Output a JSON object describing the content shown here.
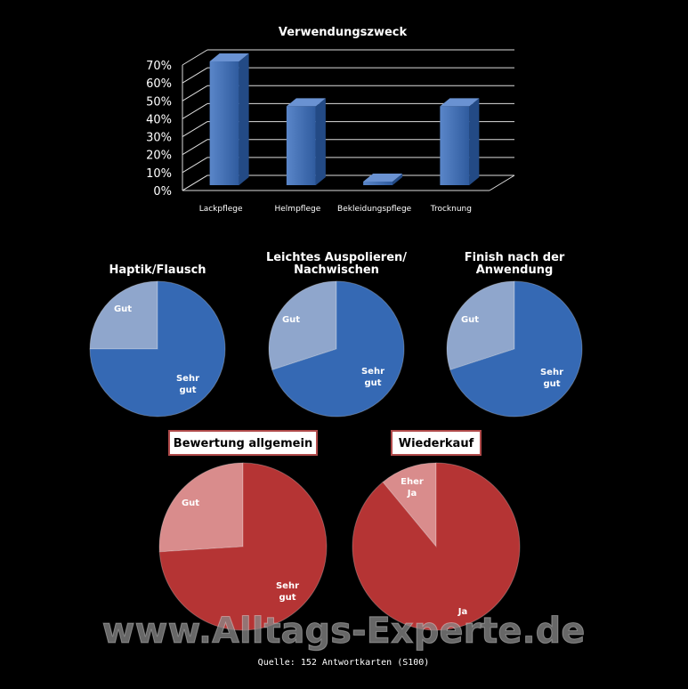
{
  "chart_data": [
    {
      "type": "bar",
      "title": "Verwendungszweck",
      "categories": [
        "Lackpflege",
        "Helmpflege",
        "Bekleidungspflege",
        "Trocknung"
      ],
      "values": [
        70,
        45,
        3,
        45
      ],
      "ylim": [
        0,
        70
      ],
      "yticks": [
        "0%",
        "10%",
        "20%",
        "30%",
        "40%",
        "50%",
        "60%",
        "70%"
      ],
      "bar_color": "#3f6fb4",
      "grid": true
    },
    {
      "type": "pie",
      "title": "Haptik/Flausch",
      "labels": [
        "Gut",
        "Sehr gut"
      ],
      "values": [
        25,
        75
      ],
      "colors": [
        "#8fa6cc",
        "#3569b4"
      ]
    },
    {
      "type": "pie",
      "title": "Leichtes Auspolieren/ Nachwischen",
      "labels": [
        "Gut",
        "Sehr gut"
      ],
      "values": [
        30,
        70
      ],
      "colors": [
        "#8fa6cc",
        "#3569b4"
      ]
    },
    {
      "type": "pie",
      "title": "Finish nach der Anwendung",
      "labels": [
        "Gut",
        "Sehr gut"
      ],
      "values": [
        30,
        70
      ],
      "colors": [
        "#8fa6cc",
        "#3569b4"
      ]
    },
    {
      "type": "pie",
      "title": "Bewertung allgemein",
      "labels": [
        "Gut",
        "Sehr gut"
      ],
      "values": [
        26,
        74
      ],
      "colors": [
        "#d98c8c",
        "#b53434"
      ]
    },
    {
      "type": "pie",
      "title": "Wiederkauf",
      "labels": [
        "Eher Ja",
        "Ja"
      ],
      "values": [
        11,
        89
      ],
      "colors": [
        "#d98c8c",
        "#b53434"
      ]
    }
  ],
  "watermark": "www.Alltags-Experte.de",
  "source": "Quelle: 152  Antwortkarten  (S100)"
}
